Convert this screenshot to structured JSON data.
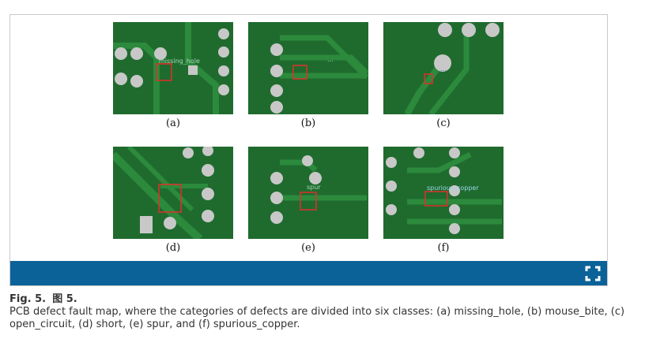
{
  "panels": [
    {
      "label": "(a)",
      "annotation": "missing_hole"
    },
    {
      "label": "(b)",
      "annotation": "..."
    },
    {
      "label": "(c)",
      "annotation": "..."
    },
    {
      "label": "(d)",
      "annotation": "..."
    },
    {
      "label": "(e)",
      "annotation": "spur"
    },
    {
      "label": "(f)",
      "annotation": "spurious_copper"
    }
  ],
  "colors": {
    "pcb_green": "#1f6b2e",
    "box_red": "#e0302a",
    "bar_blue": "#0b6299",
    "pad_silver": "#c8c8c8"
  },
  "caption": {
    "fig_label": "Fig. 5.",
    "fig_label_cn": "图 5.",
    "text": "PCB defect fault map, where the categories of defects are divided into six classes: (a) missing_hole, (b) mouse_bite, (c) open_circuit, (d) short, (e) spur, and (f) spurious_copper."
  },
  "icons": {
    "fullscreen": "fullscreen-icon"
  }
}
